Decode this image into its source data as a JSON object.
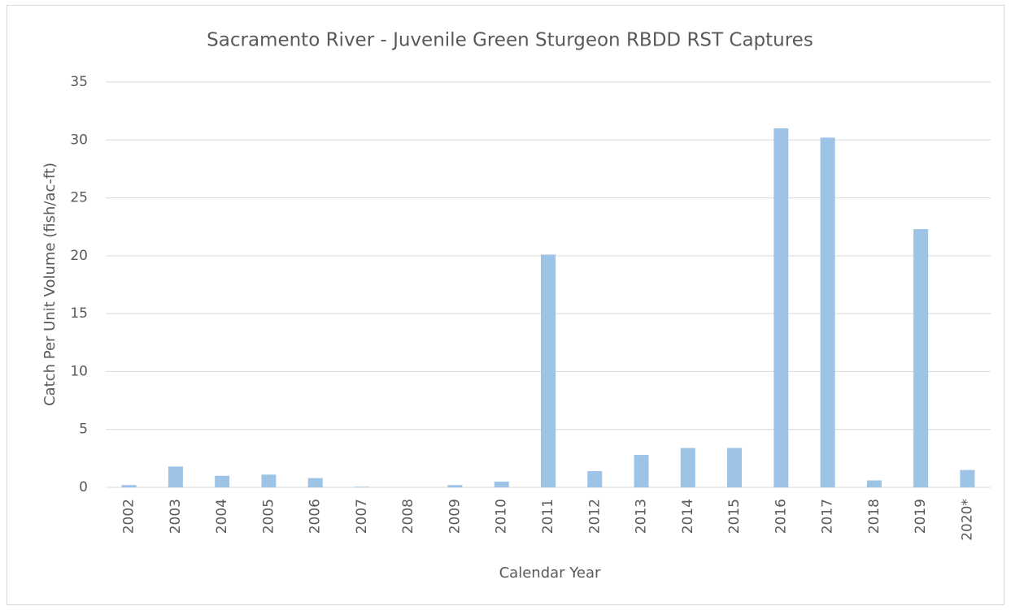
{
  "chart_data": {
    "type": "bar",
    "title": "Sacramento River - Juvenile Green Sturgeon  RBDD RST Captures",
    "x_label": "Calendar Year",
    "y_label": "Catch Per Unit Volume (fish/ac-ft)",
    "categories": [
      "2002",
      "2003",
      "2004",
      "2005",
      "2006",
      "2007",
      "2008",
      "2009",
      "2010",
      "2011",
      "2012",
      "2013",
      "2014",
      "2015",
      "2016",
      "2017",
      "2018",
      "2019",
      "2020*"
    ],
    "values": [
      0.2,
      1.8,
      1.0,
      1.1,
      0.8,
      0.05,
      0,
      0.2,
      0.5,
      20.1,
      1.4,
      2.8,
      3.4,
      3.4,
      31,
      30.2,
      0.6,
      22.3,
      1.5
    ],
    "color": "#9dc3e6",
    "ylim": [
      0,
      35
    ],
    "yticks": [
      0,
      5,
      10,
      15,
      20,
      25,
      30,
      35
    ],
    "grid": true
  }
}
